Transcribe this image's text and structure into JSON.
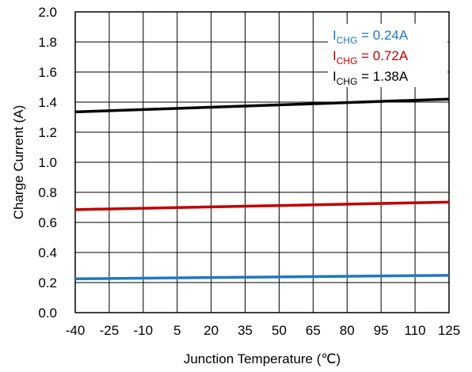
{
  "chart_data": {
    "type": "line",
    "xlabel": "Junction Temperature (℃)",
    "ylabel": "Charge Current (A)",
    "xlim": [
      -40,
      125
    ],
    "ylim": [
      0.0,
      2.0
    ],
    "x_ticks": [
      "-40",
      "-25",
      "-10",
      "5",
      "20",
      "35",
      "50",
      "65",
      "80",
      "95",
      "110",
      "125"
    ],
    "y_ticks": [
      "0.0",
      "0.2",
      "0.4",
      "0.6",
      "0.8",
      "1.0",
      "1.2",
      "1.4",
      "1.6",
      "1.8",
      "2.0"
    ],
    "grid": true,
    "legend_position": "top-right",
    "series": [
      {
        "label_main": "I",
        "label_sub": "CHG",
        "label_rest": " = 0.24A",
        "color": "#1f77c4",
        "x": [
          -40,
          125
        ],
        "y": [
          0.225,
          0.248
        ]
      },
      {
        "label_main": "I",
        "label_sub": "CHG",
        "label_rest": " = 0.72A",
        "color": "#c00000",
        "x": [
          -40,
          125
        ],
        "y": [
          0.685,
          0.735
        ]
      },
      {
        "label_main": "I",
        "label_sub": "CHG",
        "label_rest": " = 1.38A",
        "color": "#000000",
        "x": [
          -40,
          125
        ],
        "y": [
          1.335,
          1.42
        ]
      }
    ]
  }
}
